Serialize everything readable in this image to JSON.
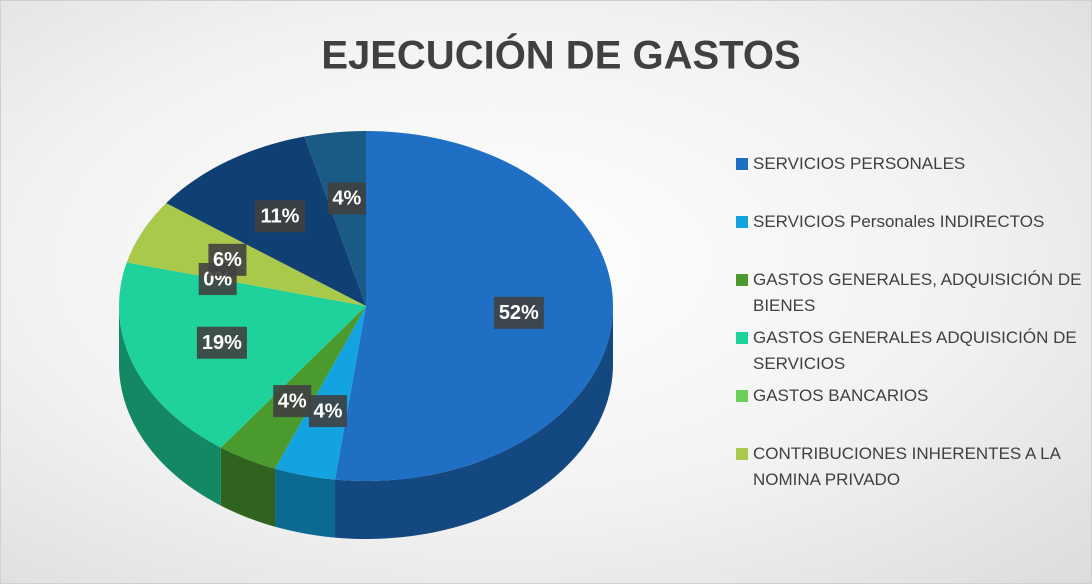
{
  "chart_data": {
    "type": "pie",
    "title": "EJECUCIÓN DE GASTOS",
    "categories": [
      "SERVICIOS PERSONALES",
      "SERVICIOS Personales INDIRECTOS",
      "GASTOS GENERALES, ADQUISICIÓN DE BIENES",
      "GASTOS GENERALES ADQUISICIÓN DE SERVICIOS",
      "GASTOS BANCARIOS",
      "CONTRIBUCIONES INHERENTES A LA NOMINA PRIVADO",
      null,
      null
    ],
    "values": [
      52,
      4,
      4,
      19,
      0,
      6,
      11,
      4
    ],
    "value_labels": [
      "52%",
      "4%",
      "4%",
      "19%",
      "0%",
      "6%",
      "11%",
      "4%"
    ],
    "colors": [
      "#1f6fc5",
      "#12a3e0",
      "#4a9a2e",
      "#1fd19a",
      "#6ccf5a",
      "#a9c94a",
      "#0f3f73",
      "#1a5b86"
    ],
    "legend": "right"
  }
}
